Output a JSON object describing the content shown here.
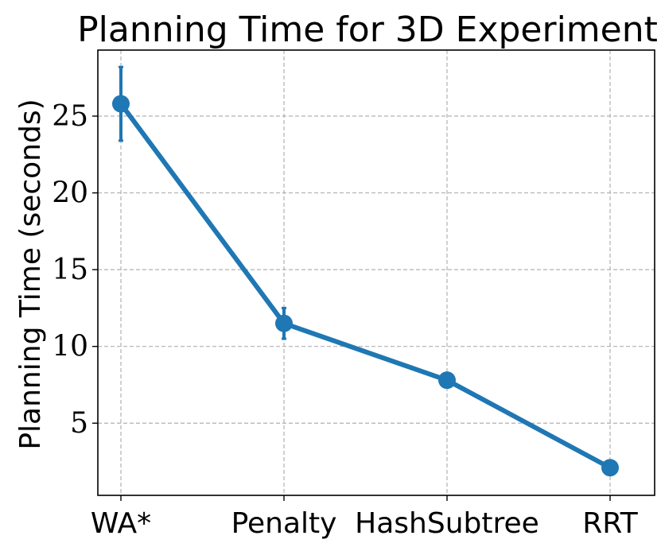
{
  "chart_data": {
    "type": "line",
    "title": "Planning Time for 3D Experiment",
    "xlabel": "",
    "ylabel": "Planning Time (seconds)",
    "categories": [
      "WA*",
      "Penalty",
      "HashSubtree",
      "RRT"
    ],
    "series": [
      {
        "values": [
          25.8,
          11.5,
          7.8,
          2.1
        ],
        "error": [
          2.4,
          1.0,
          0,
          0
        ],
        "color": "#1f77b4",
        "marker": "circle"
      }
    ],
    "yticks": [
      5,
      10,
      15,
      20,
      25
    ],
    "ytick_labels": [
      "5",
      "10",
      "15",
      "20",
      "25"
    ],
    "ylim": [
      0.3,
      29.3
    ],
    "grid": true,
    "legend": "none"
  }
}
